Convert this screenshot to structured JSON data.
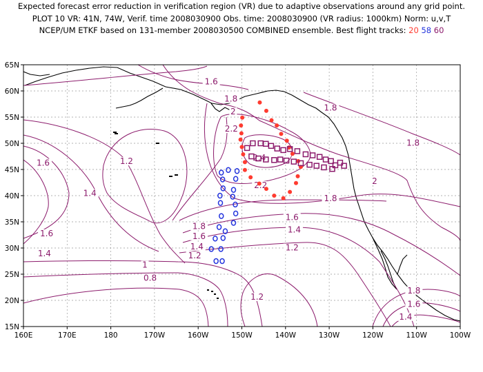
{
  "title": {
    "line1": "Expected forecast error reduction in verification region (VR) due to adaptive observations around any grid point.",
    "line2": "PLOT 10 VR: 41N, 74W, Verif. time 2008030900 Obs. time: 2008030900 (VR radius: 1000km) Norm: u,v,T",
    "line3_prefix": "NCEP/UM ETKF based on 131-member 2008030500 COMBINED ensemble.  Best flight tracks: ",
    "track_a": "20",
    "track_b": "58",
    "track_c": "60"
  },
  "colors": {
    "contour": "#8b1a6b",
    "track_a": "#ff3b30",
    "track_b": "#2233dd",
    "track_c": "#8b1a6b",
    "land": "#000000",
    "grid": "#999999"
  },
  "axes": {
    "x_ticks": [
      "160E",
      "170E",
      "180",
      "170W",
      "160W",
      "150W",
      "140W",
      "130W",
      "120W",
      "110W",
      "100W"
    ],
    "y_ticks": [
      "65N",
      "60N",
      "55N",
      "50N",
      "45N",
      "40N",
      "35N",
      "30N",
      "25N",
      "20N",
      "15N"
    ],
    "lon_range": [
      160,
      260
    ],
    "lat_range": [
      15,
      65
    ]
  },
  "contour_labels": [
    {
      "text": "1.6",
      "lon": 203.0,
      "lat": 61.5
    },
    {
      "text": "1.8",
      "lon": 207.5,
      "lat": 58.2
    },
    {
      "text": "2",
      "lon": 208.0,
      "lat": 55.8
    },
    {
      "text": "2.2",
      "lon": 207.6,
      "lat": 52.5
    },
    {
      "text": "2.4",
      "lon": 214.0,
      "lat": 47.0
    },
    {
      "text": "2.2",
      "lon": 214.3,
      "lat": 41.7
    },
    {
      "text": "1.8",
      "lon": 230.3,
      "lat": 56.5
    },
    {
      "text": "1.8",
      "lon": 249.2,
      "lat": 49.8
    },
    {
      "text": "2",
      "lon": 240.4,
      "lat": 42.5
    },
    {
      "text": "1.8",
      "lon": 230.3,
      "lat": 39.2
    },
    {
      "text": "1.6",
      "lon": 221.5,
      "lat": 35.6
    },
    {
      "text": "1.4",
      "lon": 222.0,
      "lat": 33.2
    },
    {
      "text": "1.2",
      "lon": 221.5,
      "lat": 29.8
    },
    {
      "text": "1.6",
      "lon": 164.5,
      "lat": 46.0
    },
    {
      "text": "1.2",
      "lon": 183.6,
      "lat": 46.3
    },
    {
      "text": "1.4",
      "lon": 175.2,
      "lat": 40.2
    },
    {
      "text": "1.6",
      "lon": 165.3,
      "lat": 32.5
    },
    {
      "text": "1.4",
      "lon": 164.8,
      "lat": 28.7
    },
    {
      "text": "1.8",
      "lon": 200.2,
      "lat": 33.9
    },
    {
      "text": "1.6",
      "lon": 200.2,
      "lat": 32.0
    },
    {
      "text": "1.4",
      "lon": 199.7,
      "lat": 30.0
    },
    {
      "text": "1.2",
      "lon": 199.2,
      "lat": 28.3
    },
    {
      "text": "1",
      "lon": 187.8,
      "lat": 26.5
    },
    {
      "text": "0.8",
      "lon": 189.0,
      "lat": 24.0
    },
    {
      "text": "1.2",
      "lon": 213.5,
      "lat": 20.4
    },
    {
      "text": "1.8",
      "lon": 249.4,
      "lat": 21.6
    },
    {
      "text": "1.6",
      "lon": 249.4,
      "lat": 19.0
    },
    {
      "text": "1.4",
      "lon": 247.5,
      "lat": 16.6
    }
  ],
  "tracks": {
    "red_dots": [
      [
        210.1,
        54.9
      ],
      [
        209.8,
        53.4
      ],
      [
        209.9,
        51.9
      ],
      [
        209.7,
        50.7
      ],
      [
        210.0,
        49.3
      ],
      [
        210.3,
        47.9
      ],
      [
        210.7,
        46.4
      ],
      [
        210.7,
        44.9
      ],
      [
        212.0,
        43.5
      ],
      [
        214.0,
        42.3
      ],
      [
        215.6,
        41.3
      ],
      [
        217.4,
        40.0
      ],
      [
        219.5,
        39.5
      ],
      [
        221.0,
        40.7
      ],
      [
        222.4,
        42.4
      ],
      [
        222.8,
        43.7
      ],
      [
        223.5,
        45.5
      ],
      [
        222.9,
        46.6
      ],
      [
        221.6,
        48.0
      ],
      [
        220.8,
        49.2
      ],
      [
        220.3,
        50.5
      ],
      [
        219.0,
        51.8
      ],
      [
        218.0,
        53.4
      ],
      [
        216.8,
        54.4
      ],
      [
        215.6,
        56.2
      ],
      [
        214.1,
        57.8
      ]
    ],
    "blue_circles": [
      [
        204.1,
        27.5
      ],
      [
        205.5,
        27.5
      ],
      [
        205.2,
        29.8
      ],
      [
        203.0,
        29.8
      ],
      [
        203.9,
        31.8
      ],
      [
        205.7,
        31.9
      ],
      [
        206.2,
        33.2
      ],
      [
        204.8,
        34.0
      ],
      [
        205.3,
        36.1
      ],
      [
        208.1,
        34.8
      ],
      [
        208.6,
        36.6
      ],
      [
        208.5,
        38.3
      ],
      [
        205.1,
        38.6
      ],
      [
        205.0,
        40.0
      ],
      [
        207.9,
        39.8
      ],
      [
        208.1,
        41.1
      ],
      [
        205.7,
        41.4
      ],
      [
        205.6,
        43.1
      ],
      [
        208.6,
        43.2
      ],
      [
        208.9,
        44.7
      ],
      [
        206.9,
        44.9
      ],
      [
        205.3,
        44.4
      ]
    ],
    "purple_squares": [
      [
        211.2,
        49.1
      ],
      [
        212.5,
        50.0
      ],
      [
        214.3,
        50.0
      ],
      [
        215.5,
        49.9
      ],
      [
        216.7,
        49.5
      ],
      [
        218.1,
        49.0
      ],
      [
        219.5,
        48.7
      ],
      [
        221.0,
        48.9
      ],
      [
        222.7,
        48.5
      ],
      [
        224.6,
        47.9
      ],
      [
        226.2,
        47.7
      ],
      [
        227.8,
        47.4
      ],
      [
        229.2,
        46.9
      ],
      [
        230.4,
        46.6
      ],
      [
        231.4,
        45.8
      ],
      [
        233.4,
        45.7
      ],
      [
        232.5,
        46.3
      ],
      [
        230.7,
        45.1
      ],
      [
        228.8,
        45.4
      ],
      [
        227.1,
        45.7
      ],
      [
        225.5,
        45.9
      ],
      [
        223.5,
        46.2
      ],
      [
        221.9,
        46.5
      ],
      [
        220.2,
        46.7
      ],
      [
        218.8,
        46.9
      ],
      [
        217.4,
        46.8
      ],
      [
        215.5,
        46.9
      ],
      [
        213.8,
        47.1
      ],
      [
        212.2,
        47.5
      ]
    ]
  }
}
